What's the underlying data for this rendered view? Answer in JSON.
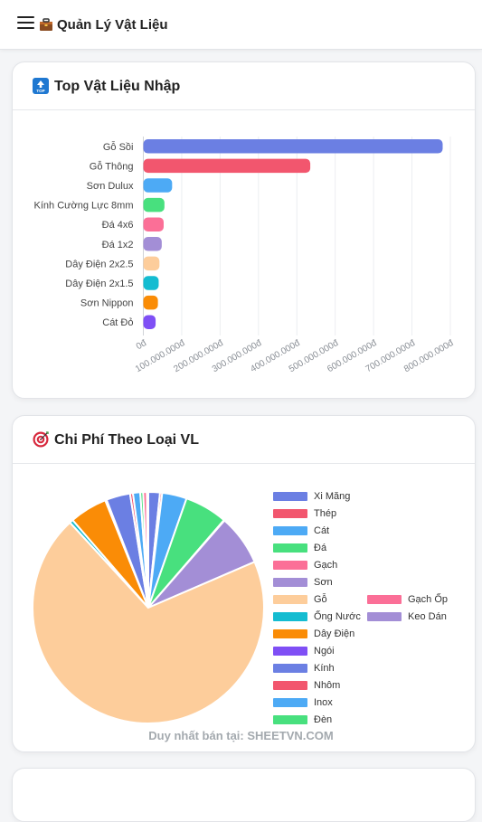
{
  "header": {
    "menu_icon": "hamburger-icon",
    "logo_icon": "toolbox-icon",
    "title": "Quản Lý Vật Liệu"
  },
  "cards": {
    "top_materials": {
      "icon": "top-arrow-icon",
      "title": "Top Vật Liệu Nhập"
    },
    "cost_by_type": {
      "icon": "target-icon",
      "title": "Chi Phí Theo Loại VL"
    }
  },
  "watermark": "Duy nhất bán tại: SHEETVN.COM",
  "chart_data": [
    {
      "type": "bar",
      "orientation": "horizontal",
      "title": "",
      "categories": [
        "Gỗ Sồi",
        "Gỗ Thông",
        "Sơn Dulux",
        "Kính Cường Lực 8mm",
        "Đá 4x6",
        "Đá 1x2",
        "Dây Điện 2x2.5",
        "Dây Điện 2x1.5",
        "Sơn Nippon",
        "Cát Đỏ"
      ],
      "values": [
        780000000,
        435000000,
        75000000,
        55000000,
        53000000,
        48000000,
        42000000,
        40000000,
        38000000,
        32000000
      ],
      "colors": [
        "#6b7fe3",
        "#f2566e",
        "#4daaf5",
        "#48e07e",
        "#fb6f97",
        "#a38ed6",
        "#fdcd9b",
        "#14bcd1",
        "#fa8c06",
        "#7f4ff5"
      ],
      "xlim": [
        0,
        800000000
      ],
      "xticks": [
        "0đ",
        "100.000.000đ",
        "200.000.000đ",
        "300.000.000đ",
        "400.000.000đ",
        "500.000.000đ",
        "600.000.000đ",
        "700.000.000đ",
        "800.000.000đ"
      ],
      "grid": true
    },
    {
      "type": "pie",
      "title": "",
      "legend_position": "right",
      "slices": [
        {
          "label": "Xi Măng",
          "value": 1.6,
          "color": "#6b7fe3"
        },
        {
          "label": "Thép",
          "value": 0.3,
          "color": "#f2566e"
        },
        {
          "label": "Cát",
          "value": 3.4,
          "color": "#4daaf5"
        },
        {
          "label": "Đá",
          "value": 5.9,
          "color": "#48e07e"
        },
        {
          "label": "Gạch",
          "value": 0.1,
          "color": "#fb6f97"
        },
        {
          "label": "Sơn",
          "value": 7.0,
          "color": "#a38ed6"
        },
        {
          "label": "Gỗ",
          "value": 68.8,
          "color": "#fdcd9b"
        },
        {
          "label": "Ống Nước",
          "value": 0.5,
          "color": "#14bcd1"
        },
        {
          "label": "Dây Điện",
          "value": 5.2,
          "color": "#fa8c06"
        },
        {
          "label": "Ngói",
          "value": 0.2,
          "color": "#7f4ff5"
        },
        {
          "label": "Kính",
          "value": 3.3,
          "color": "#6b7fe3"
        },
        {
          "label": "Nhôm",
          "value": 0.4,
          "color": "#f2566e"
        },
        {
          "label": "Inox",
          "value": 1.0,
          "color": "#4daaf5"
        },
        {
          "label": "Đèn",
          "value": 0.4,
          "color": "#48e07e"
        },
        {
          "label": "Gạch Ốp",
          "value": 0.5,
          "color": "#fb6f97"
        },
        {
          "label": "Keo Dán",
          "value": 0.2,
          "color": "#a38ed6"
        }
      ]
    }
  ]
}
